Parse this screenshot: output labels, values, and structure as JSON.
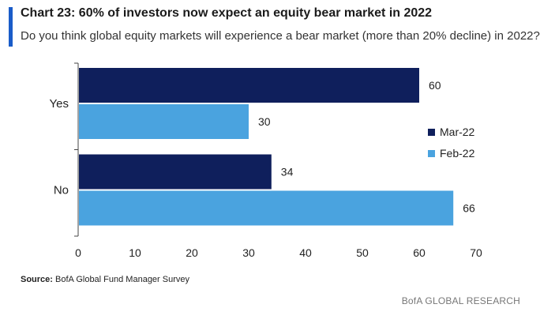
{
  "header": {
    "title": "Chart 23: 60% of investors now expect an equity bear market in 2022",
    "subtitle": "Do you think global equity markets will experience a bear market (more than 20% decline) in 2022?"
  },
  "footer": {
    "source_label": "Source:",
    "source_text": " BofA Global Fund Manager Survey",
    "brand": "BofA GLOBAL RESEARCH"
  },
  "colors": {
    "accent": "#1a5cc9",
    "series_mar": "#0f1f5c",
    "series_feb": "#4aa3df"
  },
  "chart_data": {
    "type": "bar",
    "orientation": "horizontal",
    "categories": [
      "Yes",
      "No"
    ],
    "series": [
      {
        "name": "Mar-22",
        "values": [
          60,
          34
        ],
        "color": "#0f1f5c"
      },
      {
        "name": "Feb-22",
        "values": [
          30,
          66
        ],
        "color": "#4aa3df"
      }
    ],
    "xlim": [
      0,
      70
    ],
    "xticks": [
      0,
      10,
      20,
      30,
      40,
      50,
      60,
      70
    ],
    "data_labels": true,
    "grid": false,
    "legend_position": "right"
  }
}
